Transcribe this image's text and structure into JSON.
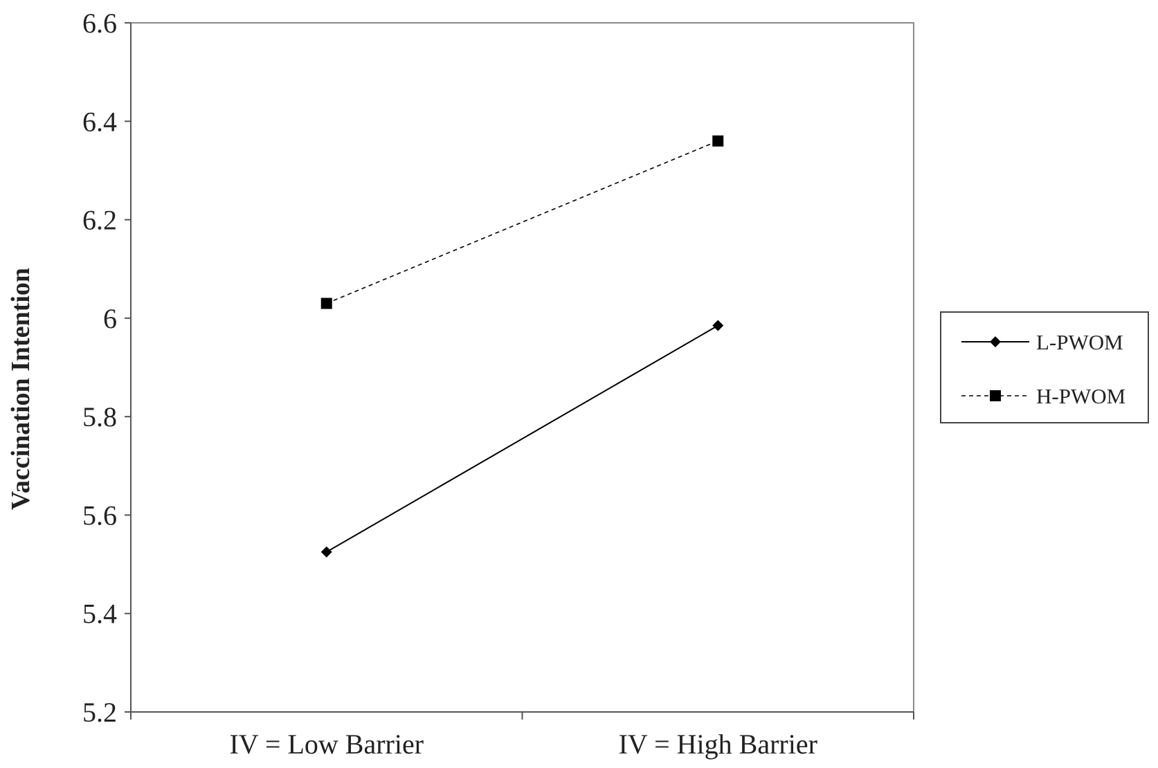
{
  "chart_data": {
    "type": "line",
    "title": "",
    "xlabel": "",
    "ylabel": "Vaccination Intention",
    "categories": [
      "IV = Low Barrier",
      "IV = High Barrier"
    ],
    "ylim": [
      5.2,
      6.6
    ],
    "yticks": [
      "5.2",
      "5.4",
      "5.6",
      "5.8",
      "6",
      "6.2",
      "6.4",
      "6.6"
    ],
    "grid": false,
    "legend_position": "right",
    "series": [
      {
        "name": "L-PWOM",
        "values": [
          5.525,
          5.985
        ],
        "marker": "diamond",
        "line_style": "solid",
        "color": "#000000"
      },
      {
        "name": "H-PWOM",
        "values": [
          6.03,
          6.36
        ],
        "marker": "square",
        "line_style": "dashed",
        "color": "#000000"
      }
    ]
  }
}
